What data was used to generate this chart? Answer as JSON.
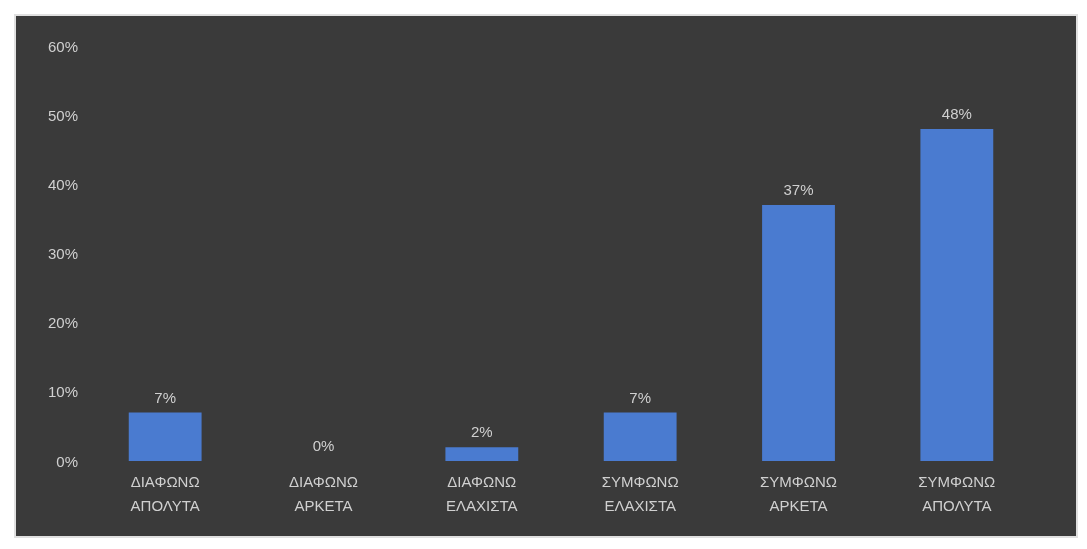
{
  "chart_data": {
    "type": "bar",
    "categories": [
      "ΔΙΑΦΩΝΩ\nΑΠΟΛΥΤΑ",
      "ΔΙΑΦΩΝΩ\nΑΡΚΕΤΑ",
      "ΔΙΑΦΩΝΩ\nΕΛΑΧΙΣΤΑ",
      "ΣΥΜΦΩΝΩ\nΕΛΑΧΙΣΤΑ",
      "ΣΥΜΦΩΝΩ\nΑΡΚΕΤΑ",
      "ΣΥΜΦΩΝΩ\nΑΠΟΛΥΤΑ"
    ],
    "values": [
      7,
      0,
      2,
      7,
      37,
      48
    ],
    "value_labels": [
      "7%",
      "0%",
      "2%",
      "7%",
      "37%",
      "48%"
    ],
    "color": "#4a7bd0",
    "ylim": [
      0,
      60
    ],
    "yticks": [
      {
        "value": 0,
        "label": "0%"
      },
      {
        "value": 10,
        "label": "10%"
      },
      {
        "value": 20,
        "label": "20%"
      },
      {
        "value": 30,
        "label": "30%"
      },
      {
        "value": 40,
        "label": "40%"
      },
      {
        "value": 50,
        "label": "50%"
      },
      {
        "value": 60,
        "label": "60%"
      }
    ],
    "grid": false
  }
}
